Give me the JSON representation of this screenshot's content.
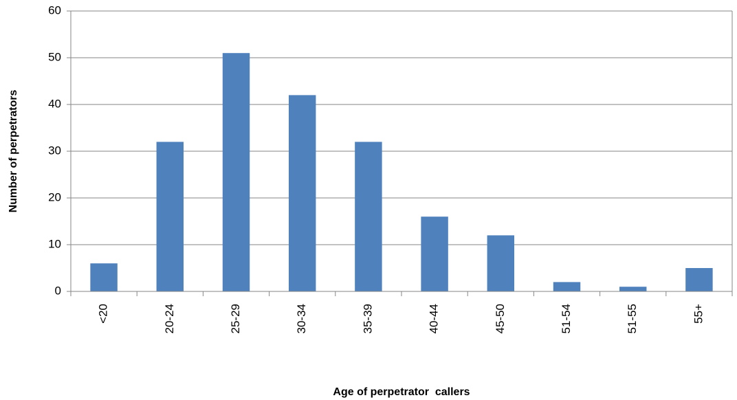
{
  "chart_data": {
    "type": "bar",
    "categories": [
      "<20",
      "20-24",
      "25-29",
      "30-34",
      "35-39",
      "40-44",
      "45-50",
      "51-54",
      "51-55",
      "55+"
    ],
    "values": [
      6,
      32,
      51,
      42,
      32,
      16,
      12,
      2,
      1,
      5
    ],
    "color": "#4f81bd",
    "xlabel": "Age of perpetrator  callers",
    "ylabel": "Number of perpetrators",
    "ylim": [
      0,
      60
    ],
    "yticks": [
      0,
      10,
      20,
      30,
      40,
      50,
      60
    ],
    "grid": true
  }
}
